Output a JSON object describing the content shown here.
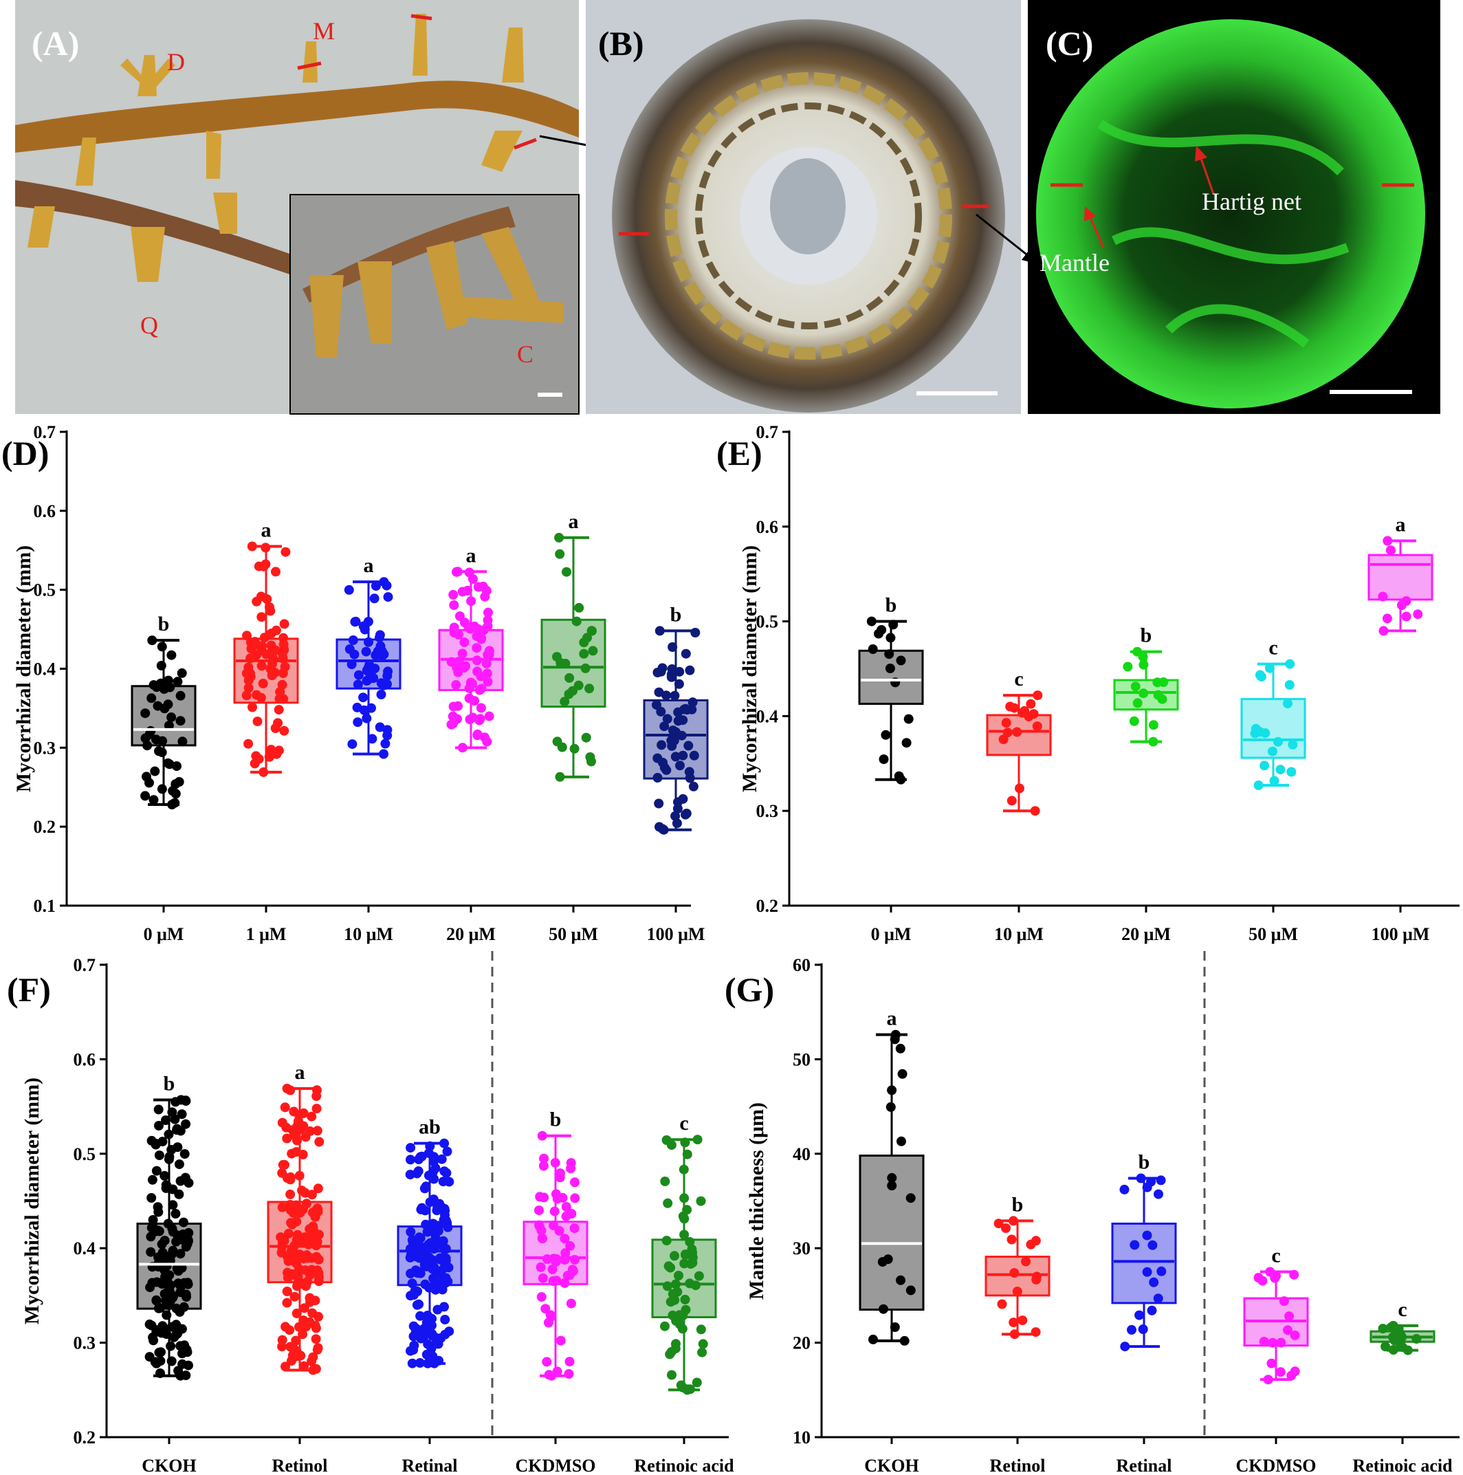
{
  "photos": [
    {
      "label": "(A)",
      "annotations": [
        "D",
        "M",
        "Q",
        "C"
      ]
    },
    {
      "label": "(B)",
      "annotations": []
    },
    {
      "label": "(C)",
      "annotations": [
        "Hartig net",
        "Mantle"
      ]
    }
  ],
  "chart_data": [
    {
      "panel": "(D)",
      "type": "box",
      "ylabel": "Mycorrhizal diameter (mm)",
      "ylim": [
        0.1,
        0.7
      ],
      "yticks": [
        0.1,
        0.2,
        0.3,
        0.4,
        0.5,
        0.6,
        0.7
      ],
      "categories": [
        "0 μM",
        "1 μM",
        "10 μM",
        "20 μM",
        "50 μM",
        "100 μM"
      ],
      "groups": [
        {
          "color": "#000000",
          "fill": "#9a9a9a",
          "median_color": "#ffffff",
          "min": 0.228,
          "q1": 0.303,
          "median": 0.323,
          "q3": 0.378,
          "max": 0.436,
          "sig": "b",
          "n": 45
        },
        {
          "color": "#ff1a1a",
          "fill": "#f59a9a",
          "median_color": "#ff1a1a",
          "min": 0.269,
          "q1": 0.357,
          "median": 0.41,
          "q3": 0.438,
          "max": 0.555,
          "sig": "a",
          "n": 75
        },
        {
          "color": "#1414f0",
          "fill": "#9e9ef2",
          "median_color": "#1414f0",
          "min": 0.292,
          "q1": 0.375,
          "median": 0.41,
          "q3": 0.437,
          "max": 0.51,
          "sig": "a",
          "n": 55
        },
        {
          "color": "#ff1aff",
          "fill": "#f7a3f7",
          "median_color": "#ff1aff",
          "min": 0.3,
          "q1": 0.373,
          "median": 0.412,
          "q3": 0.449,
          "max": 0.523,
          "sig": "a",
          "n": 75
        },
        {
          "color": "#1a8a1a",
          "fill": "#a1cfa1",
          "median_color": "#1a8a1a",
          "min": 0.263,
          "q1": 0.352,
          "median": 0.402,
          "q3": 0.462,
          "max": 0.566,
          "sig": "a",
          "n": 28
        },
        {
          "color": "#0d1a7a",
          "fill": "#9aa0d0",
          "median_color": "#0d1a7a",
          "min": 0.196,
          "q1": 0.261,
          "median": 0.316,
          "q3": 0.36,
          "max": 0.448,
          "sig": "b",
          "n": 60
        }
      ]
    },
    {
      "panel": "(E)",
      "type": "box",
      "ylabel": "Mycorrhizal diameter (mm)",
      "ylim": [
        0.2,
        0.7
      ],
      "yticks": [
        0.2,
        0.3,
        0.4,
        0.5,
        0.6,
        0.7
      ],
      "categories": [
        "0 μM",
        "10 μM",
        "20 μM",
        "50 μM",
        "100 μM"
      ],
      "groups": [
        {
          "color": "#000000",
          "fill": "#9a9a9a",
          "median_color": "#ffffff",
          "min": 0.333,
          "q1": 0.413,
          "median": 0.438,
          "q3": 0.469,
          "max": 0.5,
          "sig": "b",
          "n": 16
        },
        {
          "color": "#ff1a1a",
          "fill": "#f59a9a",
          "median_color": "#ff1a1a",
          "min": 0.3,
          "q1": 0.359,
          "median": 0.384,
          "q3": 0.401,
          "max": 0.422,
          "sig": "c",
          "n": 16
        },
        {
          "color": "#14d814",
          "fill": "#a4f0a4",
          "median_color": "#14d814",
          "min": 0.373,
          "q1": 0.407,
          "median": 0.425,
          "q3": 0.438,
          "max": 0.468,
          "sig": "b",
          "n": 14
        },
        {
          "color": "#14e0e8",
          "fill": "#a6f2f5",
          "median_color": "#14e0e8",
          "min": 0.327,
          "q1": 0.356,
          "median": 0.375,
          "q3": 0.418,
          "max": 0.455,
          "sig": "c",
          "n": 18
        },
        {
          "color": "#ff1aff",
          "fill": "#f7a3f7",
          "median_color": "#ff1aff",
          "min": 0.49,
          "q1": 0.523,
          "median": 0.56,
          "q3": 0.57,
          "max": 0.585,
          "sig": "a",
          "n": 9
        }
      ]
    },
    {
      "panel": "(F)",
      "type": "box",
      "ylabel": "Mycorrhizal diameter (mm)",
      "ylim": [
        0.2,
        0.7
      ],
      "yticks": [
        0.2,
        0.3,
        0.4,
        0.5,
        0.6,
        0.7
      ],
      "categories": [
        "CKOH",
        "Retinol",
        "Retinal",
        "CKDMSO",
        "Retinoic acid"
      ],
      "divider_after": 3,
      "groups": [
        {
          "color": "#000000",
          "fill": "#9a9a9a",
          "median_color": "#ffffff",
          "min": 0.265,
          "q1": 0.336,
          "median": 0.383,
          "q3": 0.426,
          "max": 0.557,
          "sig": "b",
          "n": 160
        },
        {
          "color": "#ff1a1a",
          "fill": "#f59a9a",
          "median_color": "#ff1a1a",
          "min": 0.271,
          "q1": 0.364,
          "median": 0.402,
          "q3": 0.449,
          "max": 0.569,
          "sig": "a",
          "n": 160
        },
        {
          "color": "#1414f0",
          "fill": "#9e9ef2",
          "median_color": "#1414f0",
          "min": 0.278,
          "q1": 0.361,
          "median": 0.397,
          "q3": 0.423,
          "max": 0.511,
          "sig": "ab",
          "n": 160
        },
        {
          "color": "#ff1aff",
          "fill": "#f7a3f7",
          "median_color": "#ff1aff",
          "min": 0.265,
          "q1": 0.362,
          "median": 0.39,
          "q3": 0.428,
          "max": 0.519,
          "sig": "b",
          "n": 60
        },
        {
          "color": "#1a8a1a",
          "fill": "#a1cfa1",
          "median_color": "#1a8a1a",
          "min": 0.25,
          "q1": 0.327,
          "median": 0.362,
          "q3": 0.409,
          "max": 0.515,
          "sig": "c",
          "n": 60
        }
      ]
    },
    {
      "panel": "(G)",
      "type": "box",
      "ylabel": "Mantle thickness (μm)",
      "ylim": [
        10,
        60
      ],
      "yticks": [
        10,
        20,
        30,
        40,
        50,
        60
      ],
      "categories": [
        "CKOH",
        "Retinol",
        "Retinal",
        "CKDMSO",
        "Retinoic acid"
      ],
      "divider_after": 3,
      "groups": [
        {
          "color": "#000000",
          "fill": "#9a9a9a",
          "median_color": "#ffffff",
          "min": 20.2,
          "q1": 23.5,
          "median": 30.5,
          "q3": 39.8,
          "max": 52.6,
          "sig": "a",
          "n": 18
        },
        {
          "color": "#ff1a1a",
          "fill": "#f59a9a",
          "median_color": "#ff1a1a",
          "min": 20.9,
          "q1": 25,
          "median": 27.2,
          "q3": 29.1,
          "max": 32.9,
          "sig": "b",
          "n": 16
        },
        {
          "color": "#1414f0",
          "fill": "#9e9ef2",
          "median_color": "#1414f0",
          "min": 19.6,
          "q1": 24.2,
          "median": 28.6,
          "q3": 32.6,
          "max": 37.4,
          "sig": "b",
          "n": 18
        },
        {
          "color": "#ff1aff",
          "fill": "#f7a3f7",
          "median_color": "#ff1aff",
          "min": 16.1,
          "q1": 19.7,
          "median": 22.3,
          "q3": 24.7,
          "max": 27.5,
          "sig": "c",
          "n": 18
        },
        {
          "color": "#1a8a1a",
          "fill": "#a1cfa1",
          "median_color": "#1a8a1a",
          "min": 19.2,
          "q1": 20.1,
          "median": 20.6,
          "q3": 21.2,
          "max": 21.8,
          "sig": "c",
          "n": 16
        }
      ]
    }
  ]
}
